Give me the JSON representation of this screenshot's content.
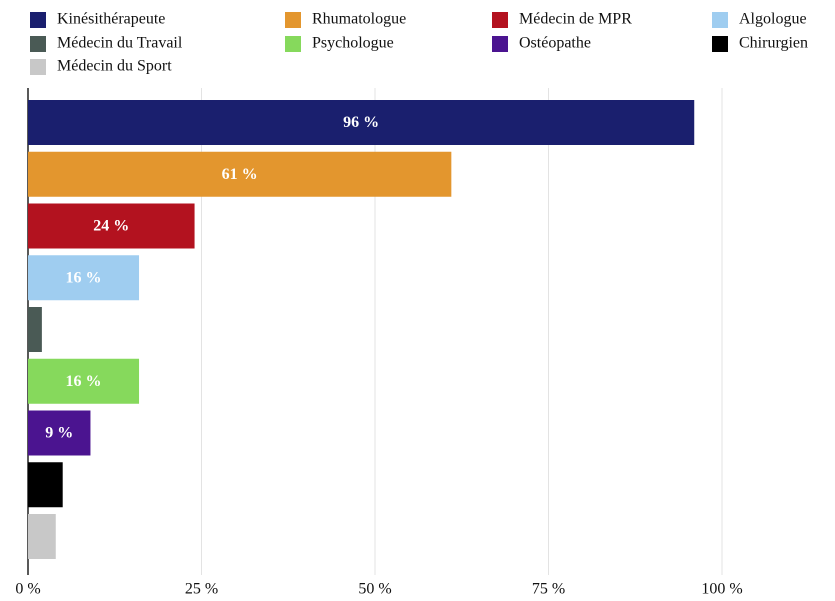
{
  "chart_data": {
    "type": "barh",
    "categories": [
      "Kinésithérapeute",
      "Rhumatologue",
      "Médecin de MPR",
      "Algologue",
      "Médecin du Travail",
      "Psychologue",
      "Ostéopathe",
      "Chirurgien",
      "Médecin du Sport"
    ],
    "values": [
      96,
      61,
      24,
      16,
      2,
      16,
      9,
      5,
      4
    ],
    "value_labels": [
      "96 %",
      "61 %",
      "24 %",
      "16 %",
      null,
      "16 %",
      "9 %",
      null,
      null
    ],
    "colors": [
      "#1a1f6e",
      "#e3962e",
      "#b3121f",
      "#9fcdf0",
      "#4a5a55",
      "#86d95c",
      "#4b1490",
      "#000000",
      "#c8c8c8"
    ],
    "xlim": [
      0,
      100
    ],
    "xticks": [
      {
        "value": 0,
        "label": "0 %"
      },
      {
        "value": 25,
        "label": "25 %"
      },
      {
        "value": 50,
        "label": "50 %"
      },
      {
        "value": 75,
        "label": "75 %"
      },
      {
        "value": 100,
        "label": "100 %"
      }
    ],
    "grid": true,
    "legend": "top"
  }
}
